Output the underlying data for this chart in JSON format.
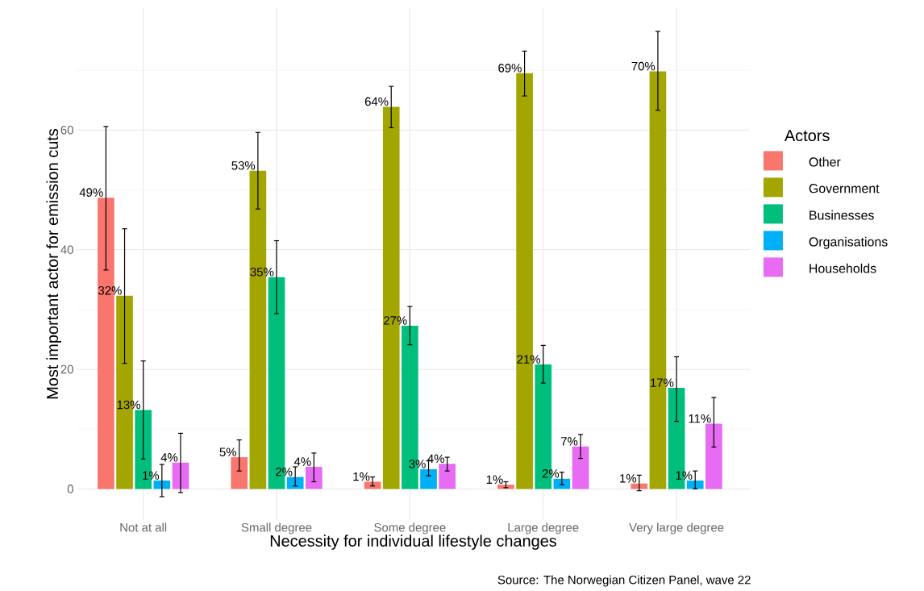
{
  "chart_data": {
    "type": "bar",
    "xlabel": "Necessity for individual lifestyle changes",
    "ylabel": "Most important actor for emission cuts",
    "legend_title": "Actors",
    "annotations": [
      "Source: The Norwegian Citizen Panel, wave 22"
    ],
    "categories": [
      "Not at all",
      "Small degree",
      "Some degree",
      "Large degree",
      "Very large degree"
    ],
    "series": [
      {
        "name": "Other",
        "color": "#f8766d",
        "values": [
          48.7,
          5.3,
          1.2,
          0.7,
          0.9
        ],
        "value_labels": [
          "49%",
          "5%",
          "1%",
          "1%",
          "1%"
        ],
        "errors": [
          [
            36.6,
            60.6
          ],
          [
            3.0,
            8.2
          ],
          [
            0.5,
            2.0
          ],
          [
            0.2,
            1.2
          ],
          [
            -0.3,
            2.3
          ]
        ]
      },
      {
        "name": "Government",
        "color": "#a3a500",
        "values": [
          32.3,
          53.2,
          63.9,
          69.5,
          69.8
        ],
        "value_labels": [
          "32%",
          "53%",
          "64%",
          "69%",
          "70%"
        ],
        "errors": [
          [
            21.0,
            43.5
          ],
          [
            46.8,
            59.6
          ],
          [
            60.4,
            67.3
          ],
          [
            65.7,
            73.2
          ],
          [
            63.3,
            76.5
          ]
        ]
      },
      {
        "name": "Businesses",
        "color": "#00bf7d",
        "values": [
          13.2,
          35.4,
          27.3,
          20.8,
          16.9
        ],
        "value_labels": [
          "13%",
          "35%",
          "27%",
          "21%",
          "17%"
        ],
        "errors": [
          [
            5.0,
            21.4
          ],
          [
            29.3,
            41.5
          ],
          [
            24.1,
            30.5
          ],
          [
            17.7,
            24.0
          ],
          [
            11.3,
            22.1
          ]
        ]
      },
      {
        "name": "Organisations",
        "color": "#00b0f6",
        "values": [
          1.4,
          2.0,
          3.3,
          1.7,
          1.4
        ],
        "value_labels": [
          "1%",
          "2%",
          "3%",
          "2%",
          "1%"
        ],
        "errors": [
          [
            -1.3,
            4.1
          ],
          [
            0.5,
            3.7
          ],
          [
            2.2,
            4.7
          ],
          [
            0.7,
            2.8
          ],
          [
            0.0,
            3.0
          ]
        ]
      },
      {
        "name": "Households",
        "color": "#e76bf3",
        "values": [
          4.4,
          3.7,
          4.2,
          7.1,
          10.9
        ],
        "value_labels": [
          "4%",
          "4%",
          "4%",
          "7%",
          "11%"
        ],
        "errors": [
          [
            -0.6,
            9.3
          ],
          [
            1.2,
            6.0
          ],
          [
            3.0,
            5.3
          ],
          [
            5.1,
            9.1
          ],
          [
            7.0,
            15.3
          ]
        ]
      }
    ],
    "ylim": [
      -5.2,
      80.4
    ],
    "yticks": [
      0,
      20,
      40,
      60
    ],
    "grid": true,
    "legend": "right"
  }
}
